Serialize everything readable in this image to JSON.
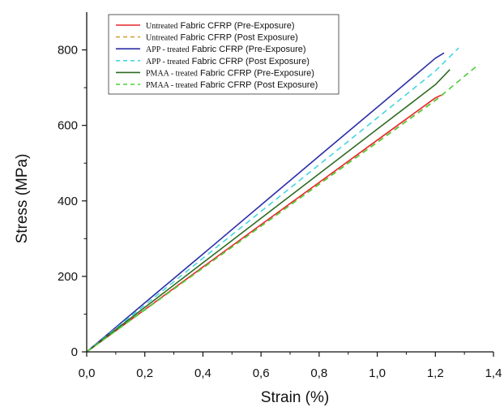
{
  "chart_data": {
    "type": "line",
    "xlabel": "Strain (%)",
    "ylabel": "Stress (MPa)",
    "xlim": [
      0,
      1.4
    ],
    "ylim": [
      0,
      900
    ],
    "x_ticks": [
      "0,0",
      "0,2",
      "0,4",
      "0,6",
      "0,8",
      "1,0",
      "1,2",
      "1,4"
    ],
    "y_ticks": [
      "0",
      "200",
      "400",
      "600",
      "800"
    ],
    "legend_position": "top-left",
    "series": [
      {
        "prefix": "Untreated",
        "suffix": " Fabric CFRP (Pre-Exposure)",
        "color": "#e8262a",
        "dash": "solid",
        "points": [
          [
            0,
            0
          ],
          [
            0.2,
            112
          ],
          [
            0.4,
            225
          ],
          [
            0.6,
            337
          ],
          [
            0.8,
            449
          ],
          [
            1.0,
            561
          ],
          [
            1.2,
            673
          ],
          [
            1.22,
            680
          ]
        ]
      },
      {
        "prefix": "Untreated",
        "suffix": " Fabric CFRP (Post Exposure)",
        "color": "#d4a33a",
        "dash": "dashed",
        "points": [
          [
            0,
            0
          ],
          [
            0.2,
            111
          ],
          [
            0.4,
            222
          ],
          [
            0.6,
            333
          ],
          [
            0.8,
            445
          ],
          [
            1.0,
            556
          ],
          [
            1.2,
            667
          ],
          [
            1.23,
            684
          ]
        ]
      },
      {
        "prefix": "APP - treated",
        "suffix": " Fabric CFRP (Pre-Exposure)",
        "color": "#2d2da8",
        "dash": "solid",
        "points": [
          [
            0,
            0
          ],
          [
            0.2,
            130
          ],
          [
            0.4,
            259
          ],
          [
            0.6,
            389
          ],
          [
            0.8,
            519
          ],
          [
            1.0,
            648
          ],
          [
            1.2,
            778
          ],
          [
            1.23,
            792
          ]
        ]
      },
      {
        "prefix": "APP - treated",
        "suffix": " Fabric CFRP (Post Exposure)",
        "color": "#45d6e0",
        "dash": "dashed",
        "points": [
          [
            0,
            0
          ],
          [
            0.2,
            124
          ],
          [
            0.4,
            248
          ],
          [
            0.6,
            372
          ],
          [
            0.8,
            496
          ],
          [
            1.0,
            620
          ],
          [
            1.2,
            744
          ],
          [
            1.28,
            805
          ]
        ]
      },
      {
        "prefix": "PMAA - treated",
        "suffix": " Fabric CFRP (Pre-Exposure)",
        "color": "#2f6b22",
        "dash": "solid",
        "points": [
          [
            0,
            0
          ],
          [
            0.2,
            118
          ],
          [
            0.4,
            236
          ],
          [
            0.6,
            354
          ],
          [
            0.8,
            472
          ],
          [
            1.0,
            590
          ],
          [
            1.2,
            708
          ],
          [
            1.25,
            748
          ]
        ]
      },
      {
        "prefix": "PMAA - treated",
        "suffix": " Fabric CFRP (Post Exposure)",
        "color": "#4ccf3a",
        "dash": "dashed",
        "points": [
          [
            0,
            0
          ],
          [
            0.2,
            111
          ],
          [
            0.4,
            222
          ],
          [
            0.6,
            333
          ],
          [
            0.8,
            444
          ],
          [
            1.0,
            555
          ],
          [
            1.2,
            666
          ],
          [
            1.35,
            762
          ]
        ]
      }
    ]
  }
}
